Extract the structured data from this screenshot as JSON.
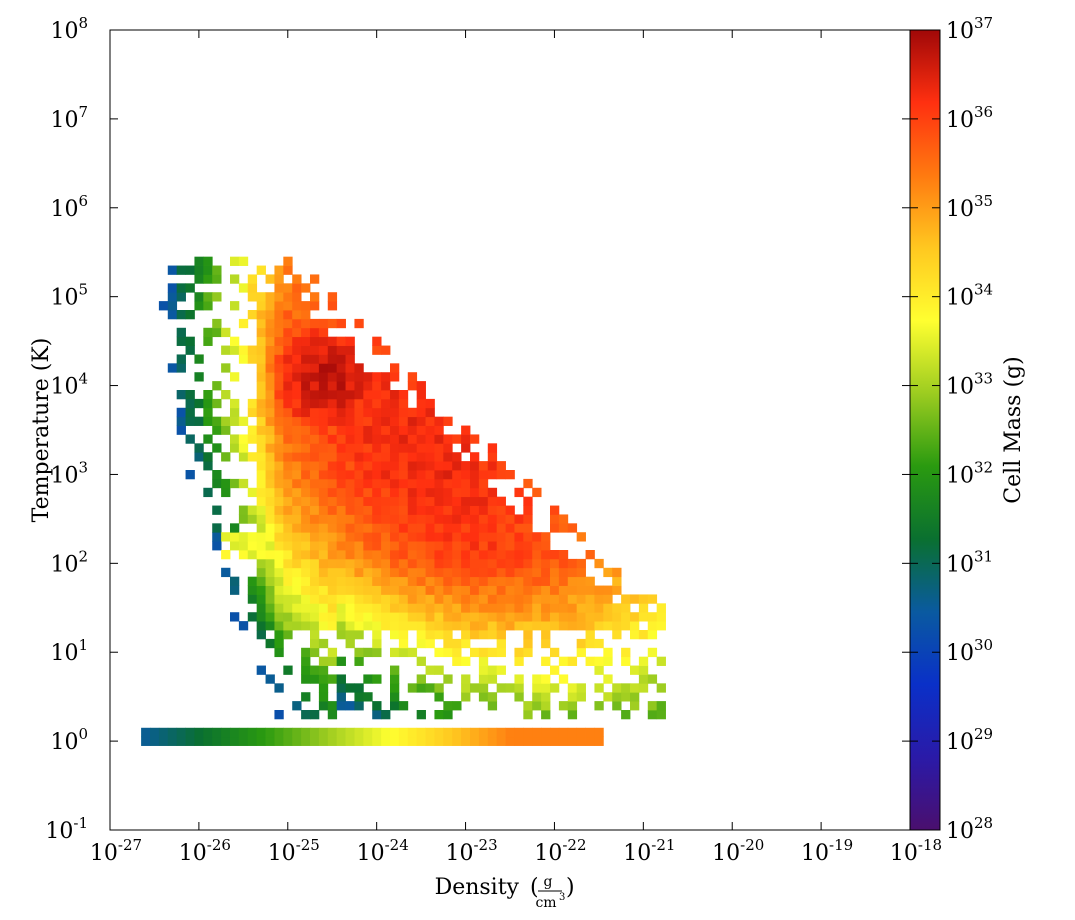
{
  "chart_data": {
    "type": "heatmap",
    "title": "",
    "xlabel": "Density",
    "xlabel_unit": {
      "numerator": "g",
      "denominator": "cm",
      "denominator_exponent": "3"
    },
    "ylabel": "Temperature  (K)",
    "x_scale": "log",
    "y_scale": "log",
    "xlim": [
      1e-27,
      1e-18
    ],
    "ylim": [
      0.1,
      100000000.0
    ],
    "x_ticks": [
      {
        "base": "10",
        "exp": "-27"
      },
      {
        "base": "10",
        "exp": "-26"
      },
      {
        "base": "10",
        "exp": "-25"
      },
      {
        "base": "10",
        "exp": "-24"
      },
      {
        "base": "10",
        "exp": "-23"
      },
      {
        "base": "10",
        "exp": "-22"
      },
      {
        "base": "10",
        "exp": "-21"
      },
      {
        "base": "10",
        "exp": "-20"
      },
      {
        "base": "10",
        "exp": "-19"
      },
      {
        "base": "10",
        "exp": "-18"
      }
    ],
    "y_ticks": [
      {
        "base": "10",
        "exp": "-1"
      },
      {
        "base": "10",
        "exp": "0"
      },
      {
        "base": "10",
        "exp": "1"
      },
      {
        "base": "10",
        "exp": "2"
      },
      {
        "base": "10",
        "exp": "3"
      },
      {
        "base": "10",
        "exp": "4"
      },
      {
        "base": "10",
        "exp": "5"
      },
      {
        "base": "10",
        "exp": "6"
      },
      {
        "base": "10",
        "exp": "7"
      },
      {
        "base": "10",
        "exp": "8"
      }
    ],
    "colorbar": {
      "label": "Cell Mass  (g)",
      "scale": "log",
      "range": [
        1e+28,
        1e+37
      ],
      "colormap": "spectral-like",
      "stops": [
        "#4a0f6e",
        "#2a1aa8",
        "#0a30c8",
        "#0a5aa0",
        "#0a7030",
        "#2a9a10",
        "#9ccc20",
        "#ffff30",
        "#ffc820",
        "#ff7a10",
        "#ff3010",
        "#a00808"
      ],
      "ticks": [
        {
          "base": "10",
          "exp": "28"
        },
        {
          "base": "10",
          "exp": "29"
        },
        {
          "base": "10",
          "exp": "30"
        },
        {
          "base": "10",
          "exp": "31"
        },
        {
          "base": "10",
          "exp": "32"
        },
        {
          "base": "10",
          "exp": "33"
        },
        {
          "base": "10",
          "exp": "34"
        },
        {
          "base": "10",
          "exp": "35"
        },
        {
          "base": "10",
          "exp": "36"
        },
        {
          "base": "10",
          "exp": "37"
        }
      ]
    },
    "features": [
      {
        "name": "main_body",
        "log_rho_center": -23.5,
        "log_T_center": 3.2,
        "log_mass_peak": 36.3
      },
      {
        "name": "hot_peak",
        "log_rho": -24.6,
        "log_T": 4.05,
        "log_mass": 36.7
      },
      {
        "name": "cold_floor",
        "log_rho_range": [
          -26.7,
          -21.5
        ],
        "log_T": 0.0,
        "log_mass_range": [
          30.5,
          35.3
        ]
      },
      {
        "name": "warm_shelf",
        "log_rho_range": [
          -25.8,
          -25.0
        ],
        "log_T": 2.15,
        "log_mass": 33.6
      }
    ]
  }
}
